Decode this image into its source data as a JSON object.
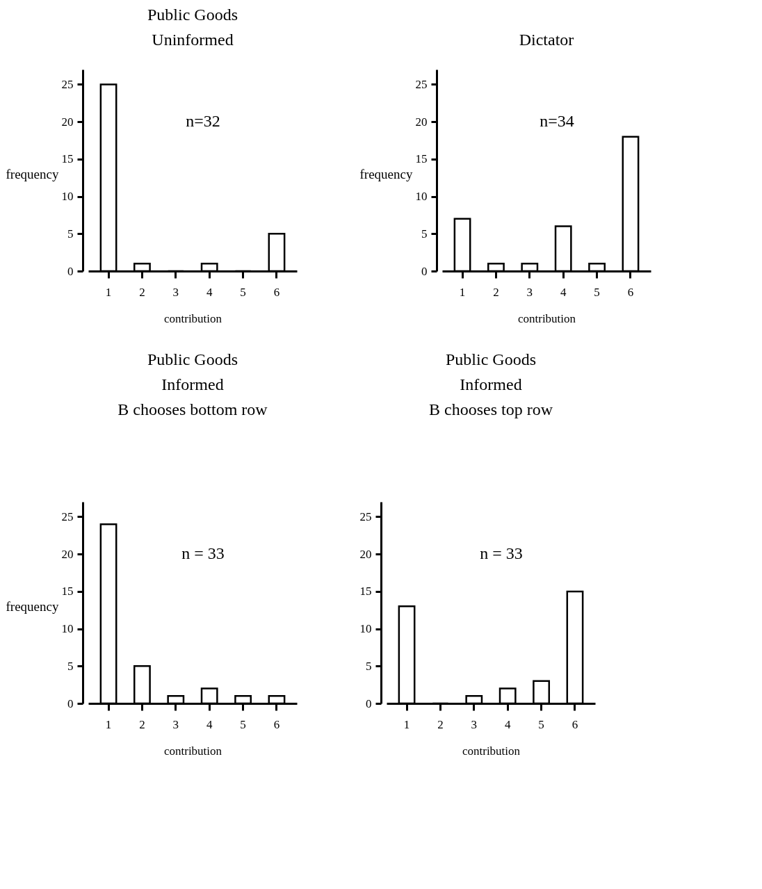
{
  "chart_data": [
    {
      "type": "bar",
      "title": "Public Goods\nUninformed",
      "xlabel": "contribution",
      "ylabel": "frequency",
      "categories": [
        "1",
        "2",
        "3",
        "4",
        "5",
        "6"
      ],
      "values": [
        25,
        1,
        0,
        1,
        0,
        5
      ],
      "color": "#000000",
      "ylim": [
        0,
        27
      ],
      "yticks": [
        0,
        5,
        10,
        15,
        20,
        25
      ],
      "annotations": [
        "n=32"
      ]
    },
    {
      "type": "bar",
      "title": "Dictator",
      "xlabel": "contribution",
      "ylabel": "frequency",
      "categories": [
        "1",
        "2",
        "3",
        "4",
        "5",
        "6"
      ],
      "values": [
        7,
        1,
        1,
        6,
        1,
        18
      ],
      "color": "#000000",
      "ylim": [
        0,
        27
      ],
      "yticks": [
        0,
        5,
        10,
        15,
        20,
        25
      ],
      "annotations": [
        "n=34"
      ]
    },
    {
      "type": "bar",
      "title": "Public Goods\nInformed\nB chooses bottom row",
      "xlabel": "contribution",
      "ylabel": "frequency",
      "categories": [
        "1",
        "2",
        "3",
        "4",
        "5",
        "6"
      ],
      "values": [
        24,
        5,
        1,
        2,
        1,
        1
      ],
      "color": "#000000",
      "ylim": [
        0,
        27
      ],
      "yticks": [
        0,
        5,
        10,
        15,
        20,
        25
      ],
      "annotations": [
        "n = 33"
      ]
    },
    {
      "type": "bar",
      "title": "Public Goods\nInformed\nB chooses top row",
      "xlabel": "contribution",
      "categories": [
        "1",
        "2",
        "3",
        "4",
        "5",
        "6"
      ],
      "values": [
        13,
        0,
        1,
        2,
        3,
        15
      ],
      "color": "#000000",
      "ylim": [
        0,
        27
      ],
      "yticks": [
        0,
        5,
        10,
        15,
        20,
        25
      ],
      "annotations": [
        "n = 33"
      ]
    }
  ]
}
